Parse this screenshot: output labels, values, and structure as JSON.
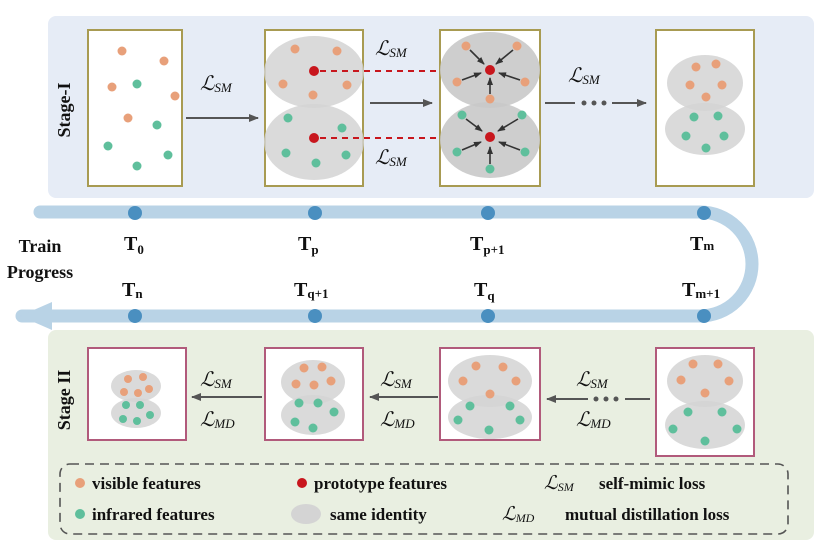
{
  "stage1_label": "Stage-I",
  "stage2_label": "Stage II",
  "train_progress": [
    "Train",
    "Progress"
  ],
  "timeline_top": [
    {
      "main": "T",
      "sub": "0"
    },
    {
      "main": "T",
      "sub": "p"
    },
    {
      "main": "T",
      "sub": "p+1"
    },
    {
      "main": "T",
      "sub": "m"
    }
  ],
  "timeline_bottom": [
    {
      "main": "T",
      "sub": "n"
    },
    {
      "main": "T",
      "sub": "q+1"
    },
    {
      "main": "T",
      "sub": "q"
    },
    {
      "main": "T",
      "sub": "m+1"
    }
  ],
  "loss_sm": {
    "script": "ℒ",
    "sub": "SM"
  },
  "loss_md": {
    "script": "ℒ",
    "sub": "MD"
  },
  "legend": {
    "visible": "visible features",
    "infrared": "infrared features",
    "prototype": "prototype features",
    "identity": "same identity",
    "sm_desc": "self-mimic loss",
    "md_desc": "mutual distillation loss"
  },
  "colors": {
    "visible": "#e8a07a",
    "infrared": "#5fbf9c",
    "prototype": "#c8161d",
    "identity": "#d4d4d4",
    "stage1_bg": "#e6ecf6",
    "stage2_bg": "#e9efe1",
    "stage1_border": "#a89b52",
    "stage2_border": "#b15a7b",
    "track": "#b9d3e6",
    "node": "#4a8fc0"
  }
}
